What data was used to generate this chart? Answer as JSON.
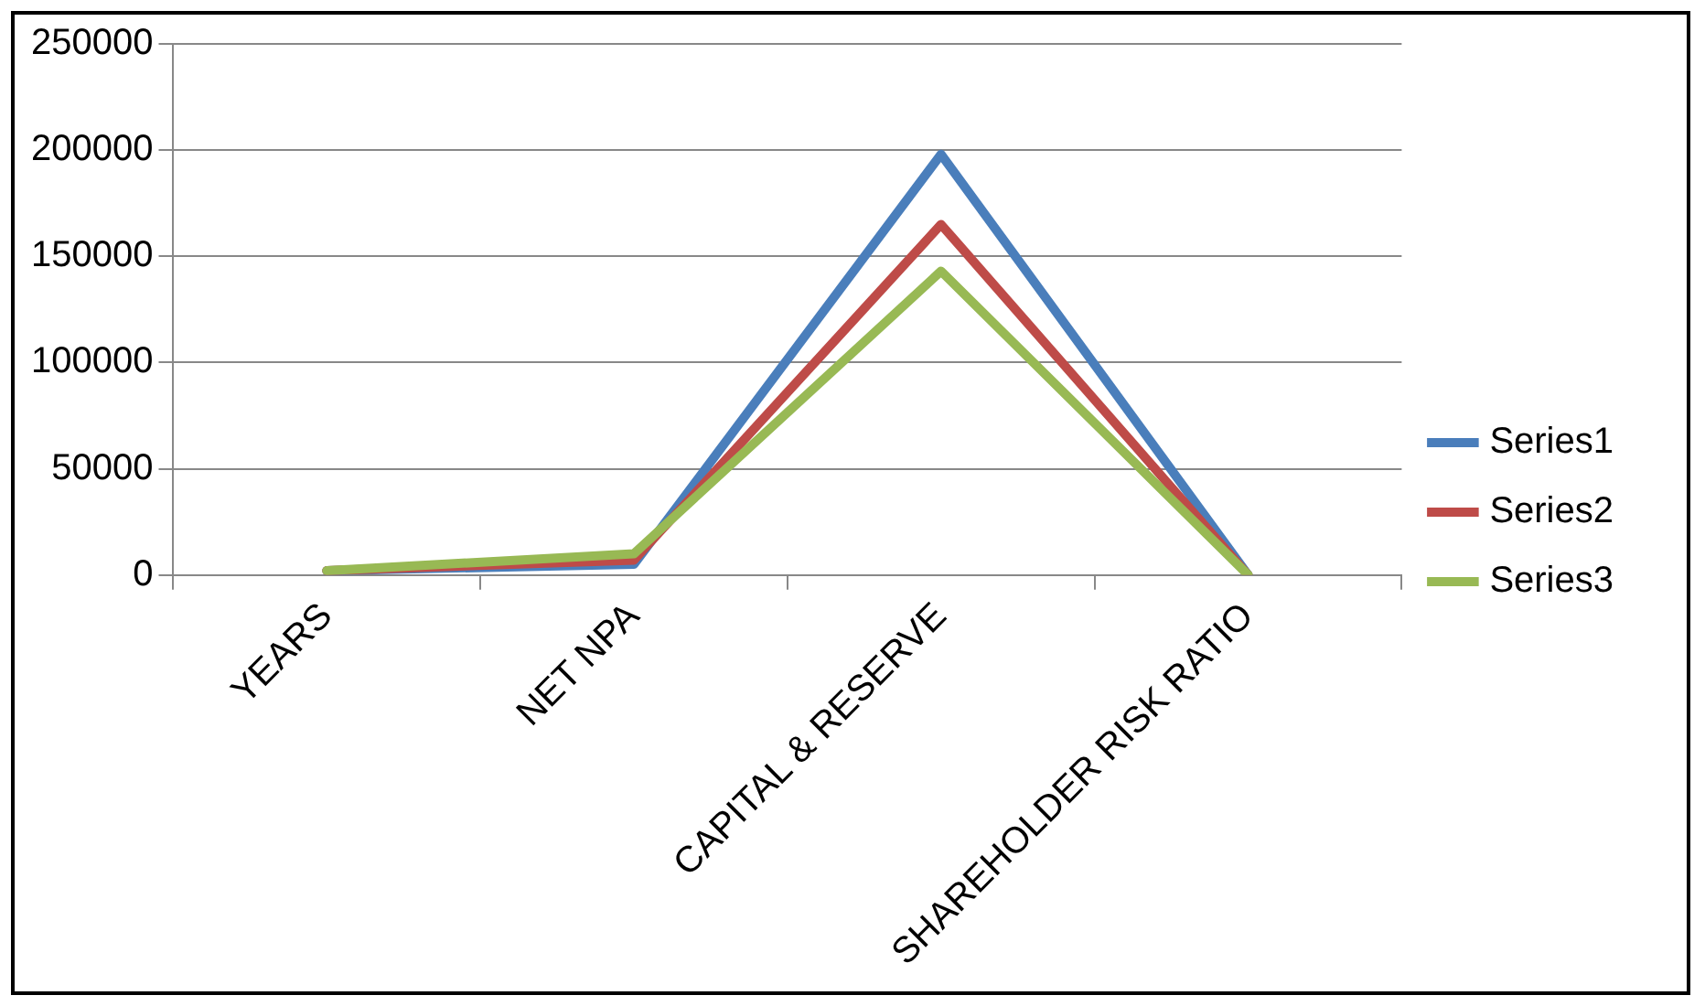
{
  "chart_data": {
    "type": "line",
    "categories": [
      "YEARS",
      "NET NPA",
      "CAPITAL & RESERVE",
      "SHAREHOLDER RISK RATIO"
    ],
    "series": [
      {
        "name": "Series1",
        "color": "#4a7ebb",
        "values": [
          2000,
          5000,
          198000,
          0
        ]
      },
      {
        "name": "Series2",
        "color": "#be4b48",
        "values": [
          2000,
          7000,
          165000,
          0
        ]
      },
      {
        "name": "Series3",
        "color": "#98b954",
        "values": [
          2000,
          10000,
          143000,
          0
        ]
      }
    ],
    "ylim": [
      0,
      250000
    ],
    "yticks": [
      0,
      50000,
      100000,
      150000,
      200000,
      250000
    ],
    "grid": "y",
    "legend": "right",
    "marker": "none"
  }
}
